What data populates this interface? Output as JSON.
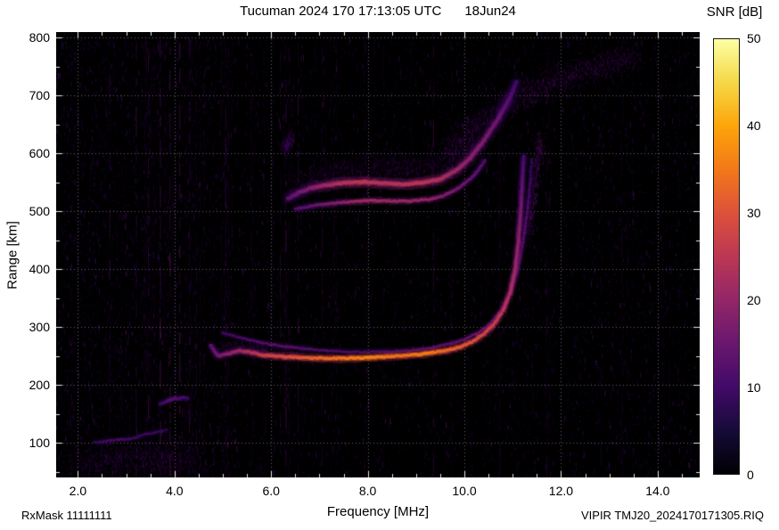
{
  "chart_data": {
    "type": "heatmap",
    "title": "Tucuman 2024 170 17:13:05 UTC",
    "date_label": "18Jun24",
    "xlabel": "Frequency [MHz]",
    "ylabel": "Range [km]",
    "xlim": [
      1.55,
      14.87
    ],
    "ylim": [
      40,
      810
    ],
    "xticks": [
      "2.0",
      "4.0",
      "6.0",
      "8.0",
      "10.0",
      "12.0",
      "14.0"
    ],
    "xtick_values": [
      2,
      4,
      6,
      8,
      10,
      12,
      14
    ],
    "yticks": [
      "100",
      "200",
      "300",
      "400",
      "500",
      "600",
      "700",
      "800"
    ],
    "ytick_values": [
      100,
      200,
      300,
      400,
      500,
      600,
      700,
      800
    ],
    "grid": true,
    "background": "#000000",
    "colorbar": {
      "label": "SNR [dB]",
      "min": 0,
      "max": 50,
      "ticks": [
        "0",
        "10",
        "20",
        "30",
        "40",
        "50"
      ],
      "tick_values": [
        0,
        10,
        20,
        30,
        40,
        50
      ],
      "stops": [
        [
          0.0,
          "#000004"
        ],
        [
          0.1,
          "#160b39"
        ],
        [
          0.2,
          "#420a68"
        ],
        [
          0.3,
          "#6a176e"
        ],
        [
          0.4,
          "#932667"
        ],
        [
          0.5,
          "#bc3754"
        ],
        [
          0.6,
          "#dd513a"
        ],
        [
          0.7,
          "#f37819"
        ],
        [
          0.8,
          "#fca50a"
        ],
        [
          0.9,
          "#f6d746"
        ],
        [
          1.0,
          "#fcffa4"
        ]
      ]
    },
    "noise": {
      "seed": 20241701,
      "speckles": 26000,
      "streaks": 120,
      "strong_streaks": [
        2.65,
        3.2,
        3.45,
        3.7,
        3.9,
        4.1,
        4.3,
        5.05,
        6.3,
        6.55,
        7.05,
        9.35,
        11.7
      ]
    },
    "traces": [
      {
        "name": "bottom-left-noise-cloud",
        "type": "cloud",
        "n": 1600,
        "sx": 0.35,
        "sy": 38,
        "t": 0.2,
        "alpha": 0.3,
        "points": [
          [
            2.0,
            72
          ],
          [
            2.8,
            74
          ],
          [
            3.6,
            72
          ],
          [
            4.4,
            70
          ]
        ]
      },
      {
        "name": "spread-f-upper-cloud",
        "type": "cloud",
        "n": 2600,
        "sx": 0.22,
        "sy": 26,
        "t": 0.22,
        "alpha": 0.3,
        "points": [
          [
            9.6,
            608
          ],
          [
            10.1,
            640
          ],
          [
            10.6,
            672
          ],
          [
            11.1,
            700
          ],
          [
            11.6,
            718
          ],
          [
            12.1,
            734
          ],
          [
            12.6,
            748
          ],
          [
            13.1,
            762
          ],
          [
            13.5,
            770
          ]
        ]
      },
      {
        "name": "second-hop-fuzz-cloud",
        "type": "cloud",
        "n": 2000,
        "sx": 0.18,
        "sy": 24,
        "t": 0.2,
        "alpha": 0.28,
        "points": [
          [
            6.45,
            545
          ],
          [
            7.0,
            562
          ],
          [
            7.6,
            573
          ],
          [
            8.2,
            577
          ],
          [
            8.8,
            577
          ],
          [
            9.4,
            582
          ],
          [
            9.9,
            596
          ],
          [
            10.25,
            618
          ]
        ]
      },
      {
        "name": "f-trace-fuzz-cloud",
        "type": "cloud",
        "n": 700,
        "sx": 0.15,
        "sy": 14,
        "t": 0.22,
        "alpha": 0.3,
        "points": [
          [
            4.9,
            262
          ],
          [
            5.5,
            268
          ],
          [
            6.1,
            262
          ],
          [
            6.7,
            256
          ]
        ]
      },
      {
        "name": "cusp-scatter-cloud",
        "type": "cloud",
        "n": 600,
        "sx": 0.1,
        "sy": 18,
        "t": 0.24,
        "alpha": 0.4,
        "points": [
          [
            11.3,
            460
          ],
          [
            11.38,
            505
          ],
          [
            11.45,
            550
          ],
          [
            11.52,
            592
          ],
          [
            11.58,
            628
          ]
        ]
      },
      {
        "name": "mid-blob-cloud",
        "type": "cloud",
        "n": 260,
        "sx": 0.1,
        "sy": 14,
        "t": 0.2,
        "alpha": 0.35,
        "points": [
          [
            6.25,
            612
          ],
          [
            6.42,
            626
          ]
        ]
      },
      {
        "name": "second-hop-core",
        "type": "line",
        "width": 3.6,
        "halo": 13,
        "points": [
          [
            6.35,
            522,
            13
          ],
          [
            6.6,
            534,
            16
          ],
          [
            6.9,
            542,
            19
          ],
          [
            7.2,
            546,
            22
          ],
          [
            7.5,
            549,
            24
          ],
          [
            7.9,
            551,
            25
          ],
          [
            8.3,
            549,
            24
          ],
          [
            8.7,
            547,
            24
          ],
          [
            9.1,
            549,
            25
          ],
          [
            9.5,
            556,
            23
          ],
          [
            9.8,
            569,
            21
          ],
          [
            10.1,
            590,
            19
          ],
          [
            10.4,
            622,
            17
          ],
          [
            10.7,
            660,
            15
          ],
          [
            10.95,
            698,
            12
          ],
          [
            11.1,
            728,
            9
          ]
        ]
      },
      {
        "name": "second-hop-lower",
        "type": "line",
        "width": 2.8,
        "halo": 9,
        "points": [
          [
            6.5,
            504,
            12
          ],
          [
            6.9,
            510,
            15
          ],
          [
            7.3,
            514,
            18
          ],
          [
            7.7,
            517,
            21
          ],
          [
            8.1,
            519,
            22
          ],
          [
            8.5,
            518,
            21
          ],
          [
            8.9,
            518,
            21
          ],
          [
            9.3,
            521,
            20
          ],
          [
            9.6,
            528,
            18
          ],
          [
            9.9,
            541,
            16
          ],
          [
            10.2,
            562,
            14
          ],
          [
            10.45,
            590,
            12
          ]
        ]
      },
      {
        "name": "f-trace-second",
        "type": "line",
        "width": 2.2,
        "halo": 7,
        "points": [
          [
            5.0,
            290,
            11
          ],
          [
            5.3,
            283,
            12
          ],
          [
            5.65,
            276,
            13
          ],
          [
            6.0,
            270,
            14
          ],
          [
            6.4,
            265,
            14
          ],
          [
            6.9,
            261,
            13
          ],
          [
            7.4,
            258,
            12
          ],
          [
            7.9,
            257,
            12
          ],
          [
            8.4,
            258,
            12
          ],
          [
            8.9,
            260,
            13
          ],
          [
            9.3,
            264,
            14
          ],
          [
            9.7,
            271,
            15
          ],
          [
            10.0,
            279,
            15
          ],
          [
            10.3,
            291,
            15
          ],
          [
            10.55,
            307,
            15
          ],
          [
            10.75,
            328,
            14
          ],
          [
            10.95,
            358,
            14
          ],
          [
            11.1,
            398,
            13
          ],
          [
            11.22,
            448,
            13
          ],
          [
            11.3,
            500,
            12
          ],
          [
            11.36,
            550,
            10
          ],
          [
            11.4,
            595,
            8
          ]
        ]
      },
      {
        "name": "f-trace-main",
        "type": "line",
        "width": 3.2,
        "halo": 10,
        "points": [
          [
            4.75,
            268,
            14
          ],
          [
            4.9,
            250,
            16
          ],
          [
            5.1,
            254,
            19
          ],
          [
            5.35,
            259,
            21
          ],
          [
            5.6,
            256,
            24
          ],
          [
            5.85,
            251,
            27
          ],
          [
            6.2,
            249,
            29
          ],
          [
            6.6,
            247,
            31
          ],
          [
            7.0,
            246,
            33
          ],
          [
            7.5,
            246,
            35
          ],
          [
            8.0,
            247,
            37
          ],
          [
            8.4,
            249,
            35
          ],
          [
            8.8,
            251,
            34
          ],
          [
            9.2,
            254,
            36
          ],
          [
            9.6,
            259,
            33
          ],
          [
            9.9,
            265,
            32
          ],
          [
            10.15,
            274,
            30
          ],
          [
            10.4,
            288,
            28
          ],
          [
            10.6,
            304,
            27
          ],
          [
            10.8,
            328,
            25
          ],
          [
            10.95,
            360,
            23
          ],
          [
            11.05,
            400,
            21
          ],
          [
            11.12,
            450,
            19
          ],
          [
            11.17,
            505,
            16
          ],
          [
            11.2,
            555,
            13
          ],
          [
            11.23,
            600,
            10
          ]
        ]
      },
      {
        "name": "e-layer-trace",
        "type": "line",
        "width": 2.2,
        "halo": 6,
        "points": [
          [
            2.35,
            101,
            9
          ],
          [
            2.6,
            103,
            11
          ],
          [
            2.85,
            105,
            12
          ],
          [
            3.1,
            107,
            11
          ],
          [
            3.3,
            110,
            10
          ]
        ]
      },
      {
        "name": "e-layer-trace-2",
        "type": "line",
        "width": 2.2,
        "halo": 6,
        "points": [
          [
            3.25,
            112,
            9
          ],
          [
            3.5,
            116,
            11
          ],
          [
            3.72,
            120,
            10
          ],
          [
            3.88,
            123,
            8
          ]
        ]
      },
      {
        "name": "e2-layer-blob",
        "type": "line",
        "width": 3,
        "halo": 8,
        "points": [
          [
            3.7,
            167,
            9
          ],
          [
            3.85,
            172,
            12
          ],
          [
            4.0,
            176,
            13
          ],
          [
            4.18,
            178,
            11
          ],
          [
            4.32,
            176,
            8
          ]
        ]
      }
    ]
  },
  "footer": {
    "rxmask": "RxMask 11111111",
    "file_label": "VIPIR  TMJ20_2024170171305.RIQ"
  }
}
